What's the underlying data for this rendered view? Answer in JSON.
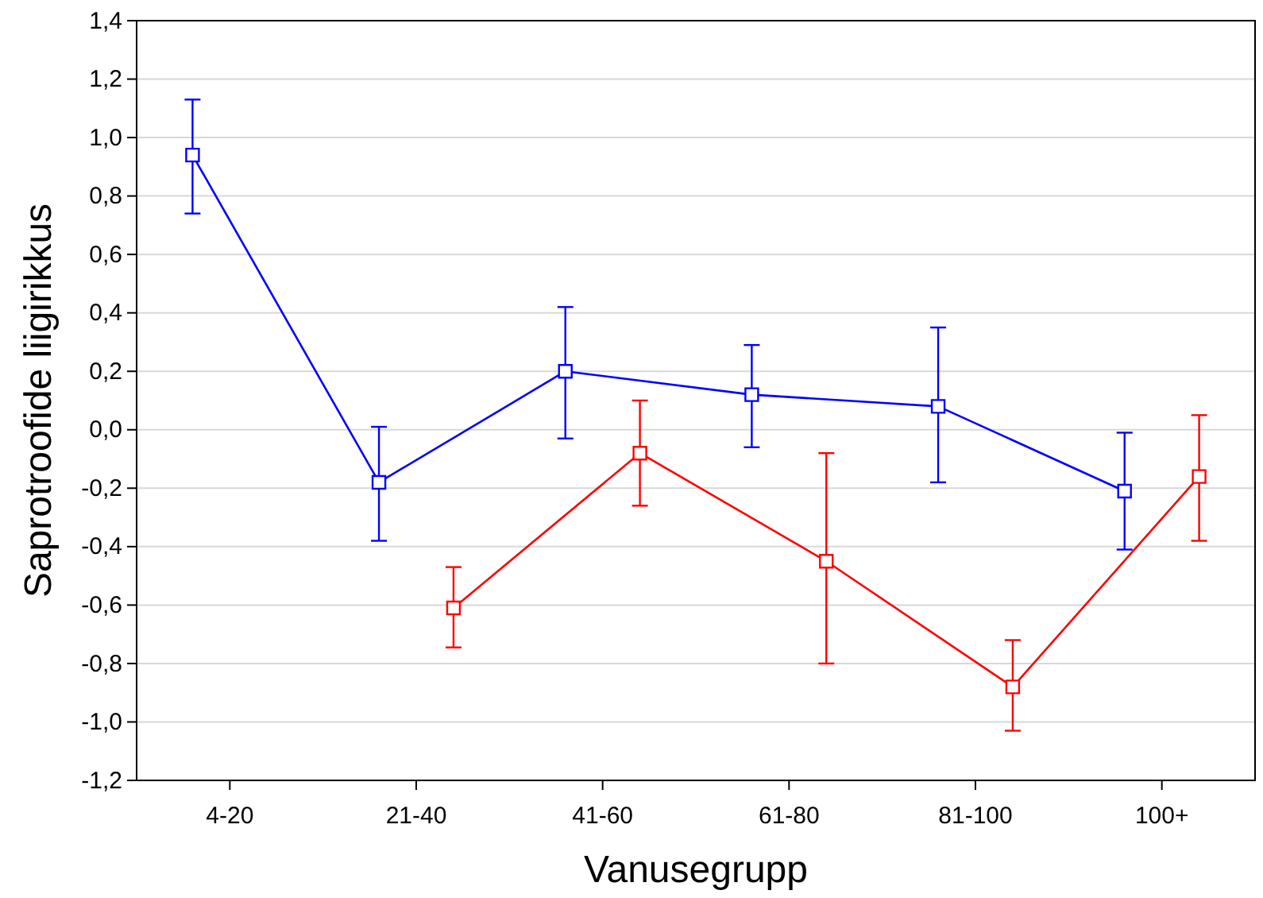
{
  "chart_data": {
    "type": "line",
    "xlabel": "Vanusegrupp",
    "ylabel": "Saprotroofide liigirikkus",
    "categories": [
      "4-20",
      "21-40",
      "41-60",
      "61-80",
      "81-100",
      "100+"
    ],
    "series": [
      {
        "color": "#0000ff",
        "values": [
          0.94,
          -0.18,
          0.2,
          0.12,
          0.08,
          -0.21
        ],
        "errors": [
          [
            0.74,
            1.13
          ],
          [
            -0.38,
            0.01
          ],
          [
            -0.03,
            0.42
          ],
          [
            -0.06,
            0.29
          ],
          [
            -0.18,
            0.35
          ],
          [
            -0.41,
            -0.01
          ]
        ]
      },
      {
        "color": "#ff0000",
        "values": [
          null,
          -0.61,
          -0.08,
          -0.45,
          -0.88,
          -0.16
        ],
        "errors": [
          null,
          [
            -0.745,
            -0.47
          ],
          [
            -0.26,
            0.1
          ],
          [
            -0.8,
            -0.08
          ],
          [
            -1.03,
            -0.72
          ],
          [
            -0.38,
            0.05
          ]
        ]
      }
    ],
    "ylim": [
      -1.2,
      1.4
    ],
    "yticks": [
      {
        "value": -1.2,
        "label": "-1,2"
      },
      {
        "value": -1.0,
        "label": "-1,0"
      },
      {
        "value": -0.8,
        "label": "-0,8"
      },
      {
        "value": -0.6,
        "label": "-0,6"
      },
      {
        "value": -0.4,
        "label": "-0,4"
      },
      {
        "value": -0.2,
        "label": "-0,2"
      },
      {
        "value": 0.0,
        "label": "0,0"
      },
      {
        "value": 0.2,
        "label": "0,2"
      },
      {
        "value": 0.4,
        "label": "0,4"
      },
      {
        "value": 0.6,
        "label": "0,6"
      },
      {
        "value": 0.8,
        "label": "0,8"
      },
      {
        "value": 1.0,
        "label": "1,0"
      },
      {
        "value": 1.2,
        "label": "1,2"
      },
      {
        "value": 1.4,
        "label": "1,4"
      }
    ],
    "grid": "y",
    "marker": "square",
    "line_style": "solid"
  }
}
